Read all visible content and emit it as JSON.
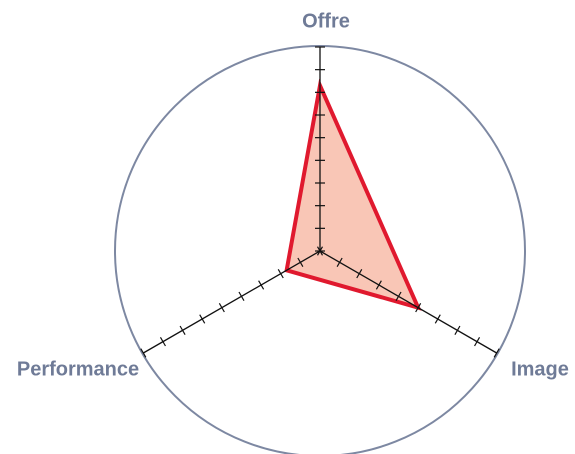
{
  "chart_data": {
    "type": "radar",
    "categories": [
      "Offre",
      "Image",
      "Performance"
    ],
    "values": [
      7.3,
      5,
      1.7
    ],
    "color": "#e0192e",
    "fill": "#f9c6b6",
    "rlim": [
      0,
      9
    ],
    "rticks": [
      0,
      1,
      2,
      3,
      4,
      5,
      6,
      7,
      8,
      9
    ]
  }
}
